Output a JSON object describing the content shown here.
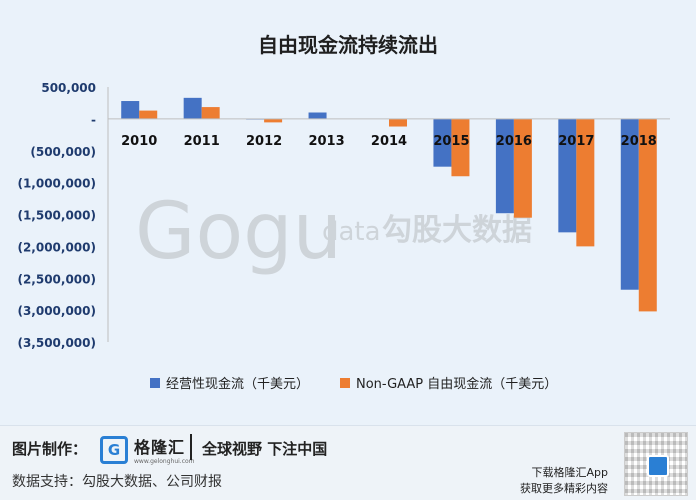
{
  "chart_data": {
    "type": "bar",
    "title": "自由现金流持续流出",
    "categories": [
      "2010",
      "2011",
      "2012",
      "2013",
      "2014",
      "2015",
      "2016",
      "2017",
      "2018"
    ],
    "series": [
      {
        "name": "经营性现金流（千美元）",
        "color": "#4472c4",
        "values": [
          280000,
          330000,
          5000,
          100000,
          0,
          -750000,
          -1480000,
          -1780000,
          -2680000
        ]
      },
      {
        "name": "Non-GAAP 自由现金流（千美元）",
        "color": "#ed7d31",
        "values": [
          130000,
          185000,
          -55000,
          0,
          -120000,
          -900000,
          -1550000,
          -2000000,
          -3020000
        ]
      }
    ],
    "ylim": [
      -3500000,
      500000
    ],
    "yticks": [
      500000,
      0,
      -500000,
      -1000000,
      -1500000,
      -2000000,
      -2500000,
      -3000000,
      -3500000
    ],
    "ytick_labels": [
      "500,000",
      "-",
      "(500,000)",
      "(1,000,000)",
      "(1,500,000)",
      "(2,000,000)",
      "(2,500,000)",
      "(3,000,000)",
      "(3,500,000)"
    ],
    "legend_position": "bottom",
    "grid": false
  },
  "watermark": {
    "brand": "Gogu",
    "small": "data",
    "cn": "勾股大数据"
  },
  "footer": {
    "made_label": "图片制作：",
    "logo_cn": "格隆汇",
    "logo_en": "www.gelonghui.com",
    "slogan": "全球视野 下注中国",
    "source_label": "数据支持：勾股大数据、公司财报",
    "download_line1": "下载格隆汇App",
    "download_line2": "获取更多精彩内容"
  }
}
